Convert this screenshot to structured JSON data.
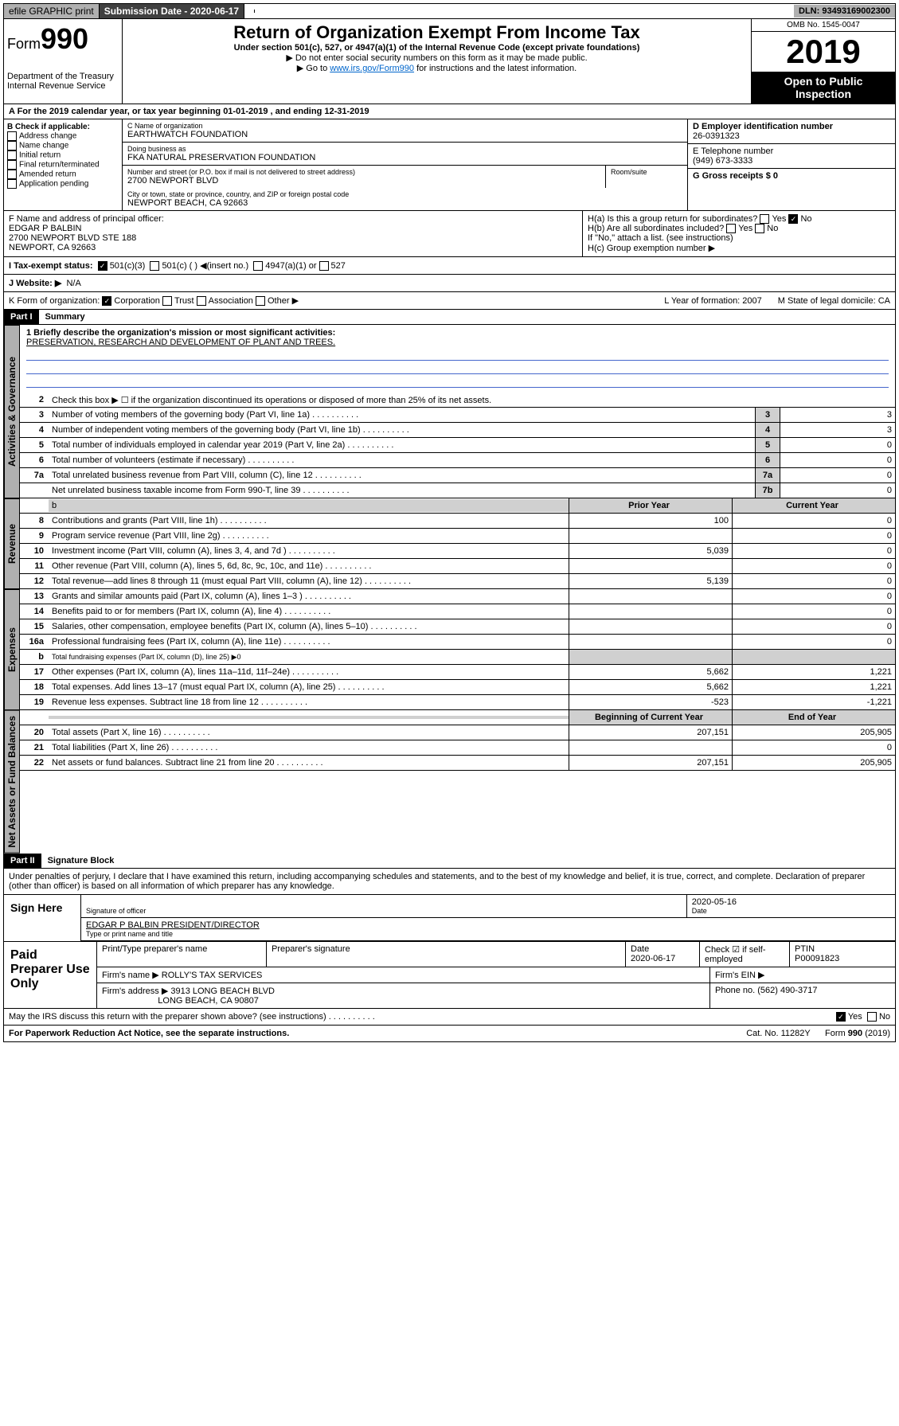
{
  "topbar": {
    "efile": "efile GRAPHIC print",
    "subdate_lbl": "Submission Date - 2020-06-17",
    "dln": "DLN: 93493169002300"
  },
  "header": {
    "form": "Form",
    "num": "990",
    "dept": "Department of the Treasury",
    "irs": "Internal Revenue Service",
    "title": "Return of Organization Exempt From Income Tax",
    "sub1": "Under section 501(c), 527, or 4947(a)(1) of the Internal Revenue Code (except private foundations)",
    "sub2": "▶ Do not enter social security numbers on this form as it may be made public.",
    "sub3_pre": "▶ Go to ",
    "sub3_link": "www.irs.gov/Form990",
    "sub3_post": " for instructions and the latest information.",
    "omb": "OMB No. 1545-0047",
    "year": "2019",
    "open": "Open to Public Inspection"
  },
  "period": "A For the 2019 calendar year, or tax year beginning 01-01-2019   , and ending 12-31-2019",
  "b": {
    "hdr": "B Check if applicable:",
    "opts": [
      "Address change",
      "Name change",
      "Initial return",
      "Final return/terminated",
      "Amended return",
      "Application pending"
    ]
  },
  "c": {
    "name_lbl": "C Name of organization",
    "name": "EARTHWATCH FOUNDATION",
    "dba_lbl": "Doing business as",
    "dba": "FKA NATURAL PRESERVATION FOUNDATION",
    "addr_lbl": "Number and street (or P.O. box if mail is not delivered to street address)",
    "addr": "2700 NEWPORT BLVD",
    "room_lbl": "Room/suite",
    "city_lbl": "City or town, state or province, country, and ZIP or foreign postal code",
    "city": "NEWPORT BEACH, CA  92663"
  },
  "d": {
    "lbl": "D Employer identification number",
    "val": "26-0391323"
  },
  "e": {
    "lbl": "E Telephone number",
    "val": "(949) 673-3333"
  },
  "g": {
    "lbl": "G Gross receipts $ 0"
  },
  "f": {
    "lbl": "F  Name and address of principal officer:",
    "name": "EDGAR P BALBIN",
    "addr1": "2700 NEWPORT BLVD STE 188",
    "addr2": "NEWPORT, CA  92663"
  },
  "h": {
    "a": "H(a)  Is this a group return for subordinates?",
    "b": "H(b)  Are all subordinates included?",
    "c": "H(c)  Group exemption number ▶",
    "ifno": "If \"No,\" attach a list. (see instructions)"
  },
  "i": {
    "lbl": "I   Tax-exempt status:",
    "501c3": "501(c)(3)",
    "501c": "501(c) (  ) ◀(insert no.)",
    "4947": "4947(a)(1) or",
    "527": "527"
  },
  "j": {
    "lbl": "J   Website: ▶",
    "val": "N/A"
  },
  "k": {
    "lbl": "K Form of organization:",
    "corp": "Corporation",
    "trust": "Trust",
    "assoc": "Association",
    "other": "Other ▶",
    "l": "L Year of formation: 2007",
    "m": "M State of legal domicile: CA"
  },
  "parts": {
    "p1": "Part I",
    "p1t": "Summary",
    "p2": "Part II",
    "p2t": "Signature Block"
  },
  "tabs": {
    "gov": "Activities & Governance",
    "rev": "Revenue",
    "exp": "Expenses",
    "net": "Net Assets or Fund Balances"
  },
  "summary": {
    "l1": "1  Briefly describe the organization's mission or most significant activities:",
    "mission": "PRESERVATION, RESEARCH AND DEVELOPMENT OF PLANT AND TREES.",
    "l2": "Check this box ▶ ☐  if the organization discontinued its operations or disposed of more than 25% of its net assets.",
    "lines": [
      {
        "n": "3",
        "d": "Number of voting members of the governing body (Part VI, line 1a)",
        "b": "3",
        "v": "3"
      },
      {
        "n": "4",
        "d": "Number of independent voting members of the governing body (Part VI, line 1b)",
        "b": "4",
        "v": "3"
      },
      {
        "n": "5",
        "d": "Total number of individuals employed in calendar year 2019 (Part V, line 2a)",
        "b": "5",
        "v": "0"
      },
      {
        "n": "6",
        "d": "Total number of volunteers (estimate if necessary)",
        "b": "6",
        "v": "0"
      },
      {
        "n": "7a",
        "d": "Total unrelated business revenue from Part VIII, column (C), line 12",
        "b": "7a",
        "v": "0"
      },
      {
        "n": "",
        "d": "Net unrelated business taxable income from Form 990-T, line 39",
        "b": "7b",
        "v": "0"
      }
    ],
    "hdr_prior": "Prior Year",
    "hdr_curr": "Current Year",
    "rev": [
      {
        "n": "8",
        "d": "Contributions and grants (Part VIII, line 1h)",
        "p": "100",
        "c": "0"
      },
      {
        "n": "9",
        "d": "Program service revenue (Part VIII, line 2g)",
        "p": "",
        "c": "0"
      },
      {
        "n": "10",
        "d": "Investment income (Part VIII, column (A), lines 3, 4, and 7d )",
        "p": "5,039",
        "c": "0"
      },
      {
        "n": "11",
        "d": "Other revenue (Part VIII, column (A), lines 5, 6d, 8c, 9c, 10c, and 11e)",
        "p": "",
        "c": "0"
      },
      {
        "n": "12",
        "d": "Total revenue—add lines 8 through 11 (must equal Part VIII, column (A), line 12)",
        "p": "5,139",
        "c": "0"
      }
    ],
    "exp": [
      {
        "n": "13",
        "d": "Grants and similar amounts paid (Part IX, column (A), lines 1–3 )",
        "p": "",
        "c": "0"
      },
      {
        "n": "14",
        "d": "Benefits paid to or for members (Part IX, column (A), line 4)",
        "p": "",
        "c": "0"
      },
      {
        "n": "15",
        "d": "Salaries, other compensation, employee benefits (Part IX, column (A), lines 5–10)",
        "p": "",
        "c": "0"
      },
      {
        "n": "16a",
        "d": "Professional fundraising fees (Part IX, column (A), line 11e)",
        "p": "",
        "c": "0"
      },
      {
        "n": "b",
        "d": "Total fundraising expenses (Part IX, column (D), line 25) ▶0",
        "p": "gray",
        "c": "gray"
      },
      {
        "n": "17",
        "d": "Other expenses (Part IX, column (A), lines 11a–11d, 11f–24e)",
        "p": "5,662",
        "c": "1,221"
      },
      {
        "n": "18",
        "d": "Total expenses. Add lines 13–17 (must equal Part IX, column (A), line 25)",
        "p": "5,662",
        "c": "1,221"
      },
      {
        "n": "19",
        "d": "Revenue less expenses. Subtract line 18 from line 12",
        "p": "-523",
        "c": "-1,221"
      }
    ],
    "hdr_beg": "Beginning of Current Year",
    "hdr_end": "End of Year",
    "net": [
      {
        "n": "20",
        "d": "Total assets (Part X, line 16)",
        "p": "207,151",
        "c": "205,905"
      },
      {
        "n": "21",
        "d": "Total liabilities (Part X, line 26)",
        "p": "",
        "c": "0"
      },
      {
        "n": "22",
        "d": "Net assets or fund balances. Subtract line 21 from line 20",
        "p": "207,151",
        "c": "205,905"
      }
    ]
  },
  "perjury": "Under penalties of perjury, I declare that I have examined this return, including accompanying schedules and statements, and to the best of my knowledge and belief, it is true, correct, and complete. Declaration of preparer (other than officer) is based on all information of which preparer has any knowledge.",
  "sign": {
    "lbl": "Sign Here",
    "sig_lbl": "Signature of officer",
    "date": "2020-05-16",
    "date_lbl": "Date",
    "name": "EDGAR P BALBIN  PRESIDENT/DIRECTOR",
    "name_lbl": "Type or print name and title"
  },
  "paid": {
    "lbl": "Paid Preparer Use Only",
    "h1": "Print/Type preparer's name",
    "h2": "Preparer's signature",
    "h3": "Date",
    "h3v": "2020-06-17",
    "h4": "Check ☑ if self-employed",
    "h5": "PTIN",
    "h5v": "P00091823",
    "firm_lbl": "Firm's name    ▶",
    "firm": "ROLLY'S TAX SERVICES",
    "ein_lbl": "Firm's EIN ▶",
    "addr_lbl": "Firm's address ▶",
    "addr1": "3913 LONG BEACH BLVD",
    "addr2": "LONG BEACH, CA  90807",
    "phone_lbl": "Phone no. (562) 490-3717"
  },
  "discuss": "May the IRS discuss this return with the preparer shown above? (see instructions)",
  "footer": {
    "l": "For Paperwork Reduction Act Notice, see the separate instructions.",
    "m": "Cat. No. 11282Y",
    "r": "Form 990 (2019)"
  },
  "yn": {
    "yes": "Yes",
    "no": "No"
  }
}
